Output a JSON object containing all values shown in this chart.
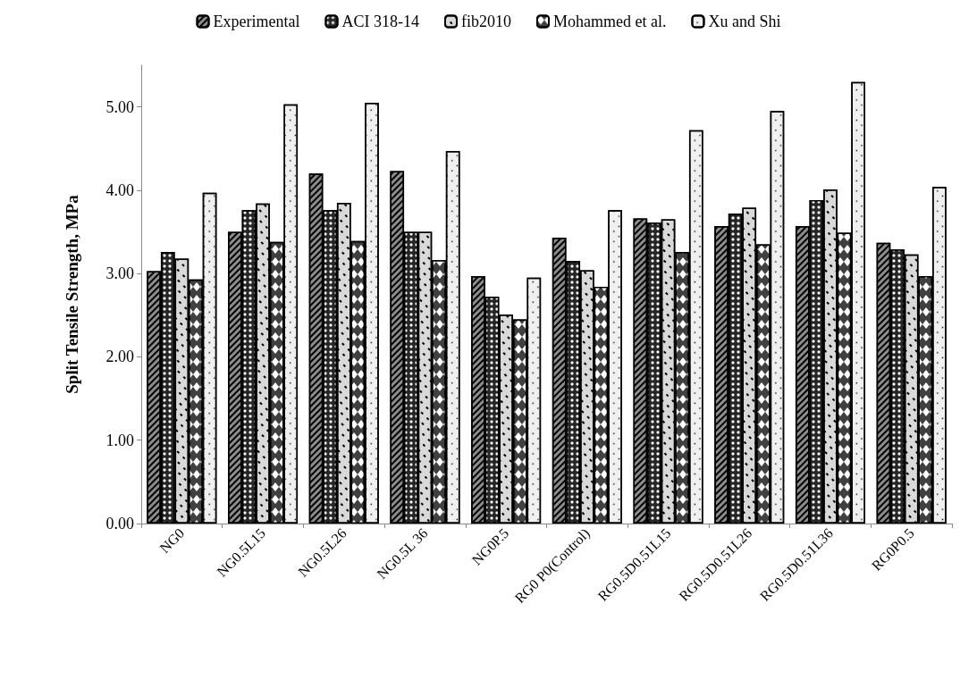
{
  "chart_data": {
    "type": "bar",
    "ylabel": "Split Tensile Strength, MPa",
    "categories": [
      "NG0",
      "NG0.5L15",
      "NG0.5L26",
      "NG0.5L 36",
      "NG0P.5",
      "RG0 P0(Control)",
      "RG0.5D0.51L15",
      "RG0.5D0.51L26",
      "RG0.5D0.51L36",
      "RG0P0.5"
    ],
    "series": [
      {
        "name": "Experimental",
        "color": "#8c8c8c",
        "values": [
          3.03,
          3.5,
          4.2,
          4.23,
          2.97,
          3.43,
          3.66,
          3.57,
          3.57,
          3.37
        ]
      },
      {
        "name": "ACI 318-14",
        "color": "#262626",
        "values": [
          3.26,
          3.76,
          3.76,
          3.5,
          2.72,
          3.15,
          3.61,
          3.72,
          3.88,
          3.29
        ]
      },
      {
        "name": "fib2010",
        "color": "#d9d9d9",
        "values": [
          3.18,
          3.84,
          3.85,
          3.5,
          2.51,
          3.04,
          3.65,
          3.79,
          4.01,
          3.23
        ]
      },
      {
        "name": "Mohammed et al.",
        "color": "#404040",
        "values": [
          2.93,
          3.38,
          3.39,
          3.16,
          2.45,
          2.84,
          3.26,
          3.35,
          3.49,
          2.97
        ]
      },
      {
        "name": "Xu and Shi",
        "color": "#f0f0f0",
        "values": [
          3.97,
          5.03,
          5.05,
          4.47,
          2.95,
          3.76,
          4.72,
          4.95,
          5.3,
          4.04
        ]
      }
    ],
    "ylim": [
      0,
      5.5
    ],
    "yticks": [
      {
        "value": 0,
        "label": "0.00"
      },
      {
        "value": 1,
        "label": "1.00"
      },
      {
        "value": 2,
        "label": "2.00"
      },
      {
        "value": 3,
        "label": "3.00"
      },
      {
        "value": 4,
        "label": "4.00"
      },
      {
        "value": 5,
        "label": "5.00"
      }
    ],
    "grid": false,
    "legend": "top"
  }
}
